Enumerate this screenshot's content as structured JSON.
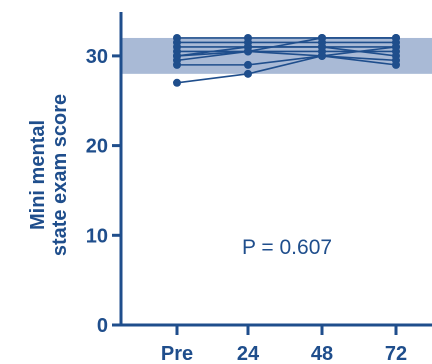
{
  "colors": {
    "main": "#1f4e8c",
    "band": "#a9bad6",
    "background": "#ffffff"
  },
  "chart_data": {
    "type": "line",
    "ylabel_lines": [
      "Mini mental",
      "state exam score"
    ],
    "categories": [
      "Pre",
      "24",
      "48",
      "72"
    ],
    "yticks": [
      0,
      10,
      20,
      30
    ],
    "ylim": [
      0,
      35
    ],
    "band": [
      28,
      32
    ],
    "annotation": "P = 0.607",
    "grid": false,
    "series": [
      {
        "values": [
          32,
          32,
          32,
          32
        ]
      },
      {
        "values": [
          31.5,
          31.5,
          31.5,
          31.5
        ]
      },
      {
        "values": [
          31,
          31,
          31,
          31
        ]
      },
      {
        "values": [
          30.5,
          30.5,
          30.5,
          30.5
        ]
      },
      {
        "values": [
          30,
          31,
          31,
          30
        ]
      },
      {
        "values": [
          29.5,
          30.5,
          30,
          29.5
        ]
      },
      {
        "values": [
          29,
          29,
          30,
          29
        ]
      },
      {
        "values": [
          27,
          28,
          30,
          31
        ]
      },
      {
        "values": [
          30,
          30.5,
          32,
          32
        ]
      }
    ]
  }
}
